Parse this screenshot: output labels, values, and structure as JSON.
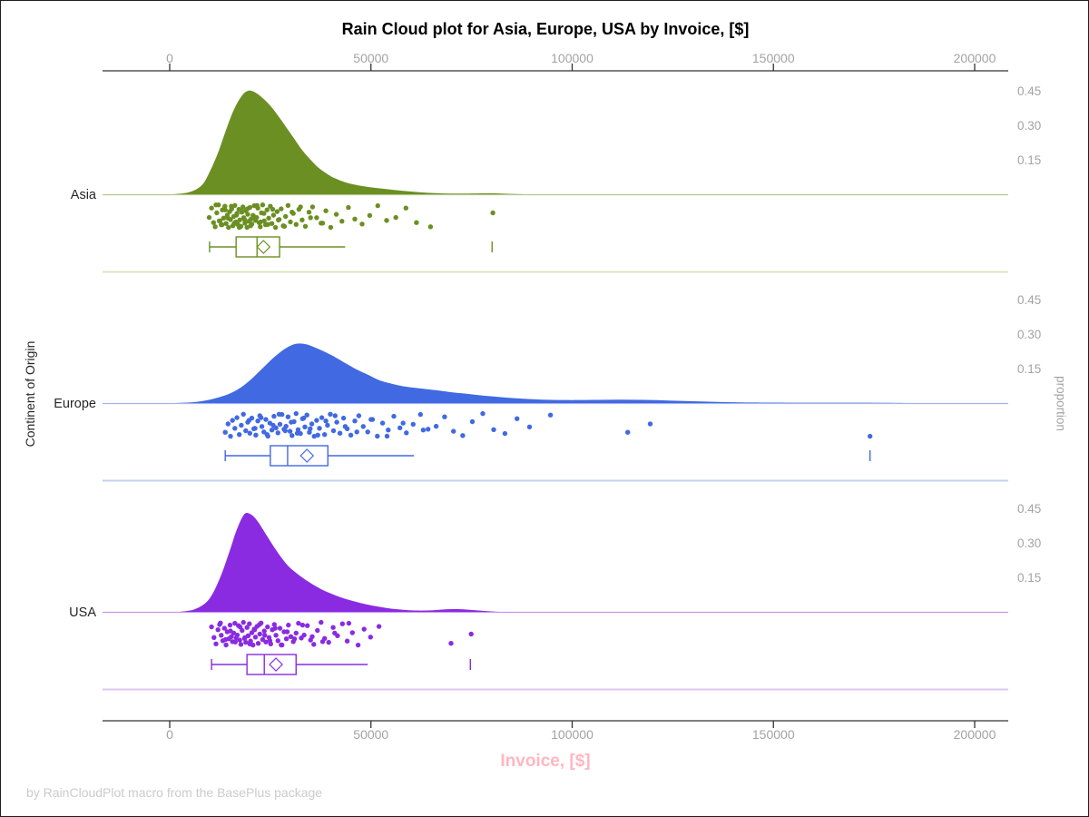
{
  "footnote": "by RainCloudPlot macro from the BasePlus package",
  "chart_data": {
    "type": "raincloud",
    "title": "Rain Cloud plot for Asia, Europe, USA by Invoice, [$]",
    "xlabel": "Invoice, [$]",
    "ylabel_left": "Continent of Origin",
    "ylabel_right": "proportion",
    "x_axis": {
      "tick_values": [
        0,
        50000,
        100000,
        150000,
        200000
      ],
      "tick_labels": [
        "0",
        "50000",
        "100000",
        "150000",
        "200000"
      ],
      "range": [
        -16700,
        208000
      ],
      "shown_on": [
        "top",
        "bottom"
      ]
    },
    "proportion_axis": {
      "tick_values": [
        0.45,
        0.3,
        0.15
      ],
      "tick_labels": [
        "0.45",
        "0.30",
        "0.15"
      ]
    },
    "jitter": [
      0.12,
      -0.68,
      0.55,
      0.91,
      -0.27,
      -0.95,
      0.41,
      0.74,
      -0.52,
      0.18,
      -0.83,
      0.63,
      -0.08,
      0.97,
      -0.38,
      0.29,
      -0.61,
      0.82,
      0.04,
      -0.9,
      0.5,
      -0.22,
      0.71,
      -0.57,
      0.33,
      0.87,
      -0.33,
      -0.77,
      0.14,
      0.6,
      -0.45,
      0.96,
      -0.15,
      0.44,
      -0.72,
      0.25,
      0.68,
      -0.05,
      -0.88,
      0.37
    ],
    "series": [
      {
        "name": "Asia",
        "color": "#6b8f23",
        "light_color": "#dce6c3",
        "jitter_offset": 0,
        "density": [
          [
            1000,
            0
          ],
          [
            5000,
            0.01
          ],
          [
            8000,
            0.04
          ],
          [
            10000,
            0.1
          ],
          [
            12000,
            0.18
          ],
          [
            14000,
            0.28
          ],
          [
            16000,
            0.37
          ],
          [
            18000,
            0.43
          ],
          [
            19500,
            0.45
          ],
          [
            21000,
            0.445
          ],
          [
            23000,
            0.42
          ],
          [
            25000,
            0.385
          ],
          [
            27000,
            0.34
          ],
          [
            29000,
            0.29
          ],
          [
            31000,
            0.24
          ],
          [
            33000,
            0.19
          ],
          [
            35000,
            0.15
          ],
          [
            37000,
            0.115
          ],
          [
            39000,
            0.09
          ],
          [
            41000,
            0.07
          ],
          [
            44000,
            0.05
          ],
          [
            47000,
            0.038
          ],
          [
            50000,
            0.03
          ],
          [
            54000,
            0.022
          ],
          [
            58000,
            0.015
          ],
          [
            62000,
            0.009
          ],
          [
            66000,
            0.005
          ],
          [
            70000,
            0.003
          ],
          [
            74000,
            0.003
          ],
          [
            78000,
            0.004
          ],
          [
            81000,
            0.004
          ],
          [
            84000,
            0.002
          ],
          [
            88000,
            0
          ]
        ],
        "box": {
          "min": 9900,
          "q1": 16500,
          "median": 21700,
          "q3": 27300,
          "max": 43600,
          "mean": 23300,
          "far_outlier": 80100
        },
        "rain": [
          9800,
          10400,
          10900,
          11300,
          11700,
          12100,
          12500,
          12800,
          13100,
          13400,
          13700,
          14000,
          14300,
          14600,
          14900,
          15100,
          15400,
          15700,
          15900,
          16200,
          16400,
          16700,
          16900,
          17200,
          17400,
          17700,
          17900,
          18200,
          18400,
          18700,
          18900,
          19200,
          19400,
          19700,
          19900,
          20200,
          20400,
          20700,
          21000,
          21300,
          21600,
          21900,
          22200,
          22500,
          22800,
          23100,
          23500,
          23800,
          24200,
          24600,
          25000,
          25400,
          25800,
          26300,
          26700,
          27200,
          27700,
          28200,
          28800,
          29400,
          30000,
          30700,
          31400,
          32100,
          32900,
          33700,
          34600,
          35500,
          36500,
          37600,
          38800,
          40000,
          41400,
          42800,
          44400,
          46000,
          47800,
          49700,
          51700,
          53900,
          56200,
          58700,
          61300,
          64800,
          80300,
          11500,
          12300,
          13000,
          13800,
          14500,
          15300,
          16000,
          16600,
          17300,
          18000,
          18600,
          19300,
          20100,
          20900,
          21700,
          22600,
          23400,
          24400,
          25600,
          27000,
          28500,
          30400,
          32500,
          35000,
          38000
        ]
      },
      {
        "name": "Europe",
        "color": "#4169e1",
        "light_color": "#c3d1f1",
        "jitter_offset": 11,
        "density": [
          [
            1500,
            0
          ],
          [
            6000,
            0.004
          ],
          [
            10000,
            0.015
          ],
          [
            14000,
            0.035
          ],
          [
            17000,
            0.06
          ],
          [
            20000,
            0.1
          ],
          [
            23000,
            0.15
          ],
          [
            26000,
            0.2
          ],
          [
            29000,
            0.24
          ],
          [
            31500,
            0.258
          ],
          [
            34000,
            0.255
          ],
          [
            37000,
            0.235
          ],
          [
            40000,
            0.21
          ],
          [
            43000,
            0.18
          ],
          [
            46000,
            0.15
          ],
          [
            49000,
            0.125
          ],
          [
            52000,
            0.1
          ],
          [
            55000,
            0.085
          ],
          [
            58000,
            0.073
          ],
          [
            61000,
            0.066
          ],
          [
            64000,
            0.06
          ],
          [
            67000,
            0.054
          ],
          [
            70000,
            0.047
          ],
          [
            74000,
            0.04
          ],
          [
            78000,
            0.032
          ],
          [
            82000,
            0.026
          ],
          [
            86000,
            0.021
          ],
          [
            90000,
            0.017
          ],
          [
            95000,
            0.014
          ],
          [
            100000,
            0.013
          ],
          [
            106000,
            0.014
          ],
          [
            112000,
            0.015
          ],
          [
            118000,
            0.014
          ],
          [
            124000,
            0.011
          ],
          [
            130000,
            0.008
          ],
          [
            136000,
            0.005
          ],
          [
            142000,
            0.003
          ],
          [
            150000,
            0.002
          ],
          [
            160000,
            0.0015
          ],
          [
            170000,
            0.0015
          ],
          [
            178000,
            0.001
          ],
          [
            186000,
            0
          ]
        ],
        "box": {
          "min": 13800,
          "q1": 25000,
          "median": 29300,
          "q3": 39300,
          "max": 60700,
          "mean": 34100,
          "far_outlier": 174000
        },
        "rain": [
          13800,
          14500,
          15100,
          15600,
          16200,
          16700,
          17300,
          17800,
          18300,
          18900,
          19400,
          19900,
          20400,
          20900,
          21400,
          21900,
          22400,
          22900,
          23400,
          23900,
          24400,
          24900,
          25400,
          25900,
          26400,
          26900,
          27400,
          27900,
          28400,
          28900,
          29400,
          29900,
          30400,
          30900,
          31400,
          31900,
          32500,
          33000,
          33600,
          34100,
          34700,
          35300,
          35900,
          36500,
          37200,
          37800,
          38500,
          39200,
          39900,
          40700,
          41500,
          42300,
          43200,
          44100,
          45000,
          46000,
          47000,
          48100,
          49200,
          50400,
          51600,
          52900,
          54300,
          55700,
          57200,
          58800,
          60500,
          62300,
          64200,
          66200,
          68300,
          70500,
          72800,
          75200,
          77800,
          80500,
          83300,
          86300,
          89400,
          94600,
          113800,
          119400,
          174000,
          19700,
          21200,
          22700,
          24200,
          25700,
          27200,
          28700,
          30200,
          31700,
          33300,
          34900,
          36800,
          38800,
          41100,
          43600,
          46500,
          50000,
          54000,
          58000,
          63000
        ]
      },
      {
        "name": "USA",
        "color": "#8a2be2",
        "light_color": "#dfc7f0",
        "jitter_offset": 23,
        "density": [
          [
            2500,
            0
          ],
          [
            6000,
            0.01
          ],
          [
            9000,
            0.04
          ],
          [
            11000,
            0.09
          ],
          [
            13000,
            0.17
          ],
          [
            15000,
            0.27
          ],
          [
            16500,
            0.35
          ],
          [
            18000,
            0.41
          ],
          [
            19000,
            0.43
          ],
          [
            20500,
            0.42
          ],
          [
            22000,
            0.39
          ],
          [
            24000,
            0.335
          ],
          [
            26000,
            0.28
          ],
          [
            28000,
            0.23
          ],
          [
            30000,
            0.19
          ],
          [
            32500,
            0.155
          ],
          [
            35000,
            0.125
          ],
          [
            37500,
            0.1
          ],
          [
            40000,
            0.08
          ],
          [
            43000,
            0.06
          ],
          [
            46000,
            0.045
          ],
          [
            49000,
            0.032
          ],
          [
            52000,
            0.022
          ],
          [
            55000,
            0.014
          ],
          [
            58000,
            0.009
          ],
          [
            61000,
            0.006
          ],
          [
            64000,
            0.006
          ],
          [
            67000,
            0.009
          ],
          [
            70000,
            0.012
          ],
          [
            73000,
            0.011
          ],
          [
            76000,
            0.007
          ],
          [
            79000,
            0.003
          ],
          [
            82000,
            0
          ]
        ],
        "box": {
          "min": 10400,
          "q1": 19200,
          "median": 23500,
          "q3": 31400,
          "max": 49200,
          "mean": 26400,
          "far_outlier": 74700
        },
        "rain": [
          10400,
          11000,
          11500,
          12000,
          12400,
          12800,
          13200,
          13600,
          14000,
          14300,
          14700,
          15000,
          15300,
          15600,
          15900,
          16200,
          16500,
          16800,
          17100,
          17400,
          17700,
          18000,
          18300,
          18600,
          18900,
          19200,
          19500,
          19800,
          20100,
          20400,
          20700,
          21000,
          21300,
          21700,
          22000,
          22400,
          22700,
          23100,
          23500,
          23900,
          24300,
          24700,
          25100,
          25500,
          26000,
          26400,
          26900,
          27400,
          27900,
          28400,
          29000,
          29500,
          30100,
          30700,
          31400,
          32000,
          32700,
          33400,
          34200,
          35000,
          35800,
          36700,
          37600,
          38500,
          39500,
          40600,
          41700,
          42900,
          44100,
          45400,
          46800,
          48300,
          49900,
          52000,
          69900,
          74900,
          12600,
          13900,
          15100,
          16300,
          17500,
          18700,
          19900,
          21100,
          22300,
          23600,
          24900,
          26200,
          27700,
          29200,
          31000,
          33000,
          35400,
          38000,
          41000,
          44500
        ]
      }
    ],
    "style": {
      "axis_color": "#333333",
      "tick_label_color": "#a3a3a3",
      "category_label_color": "#262626",
      "title_color": "#000000",
      "xlabel_color": "#ffb6c1",
      "footnote_color": "#cbcbcb"
    }
  }
}
